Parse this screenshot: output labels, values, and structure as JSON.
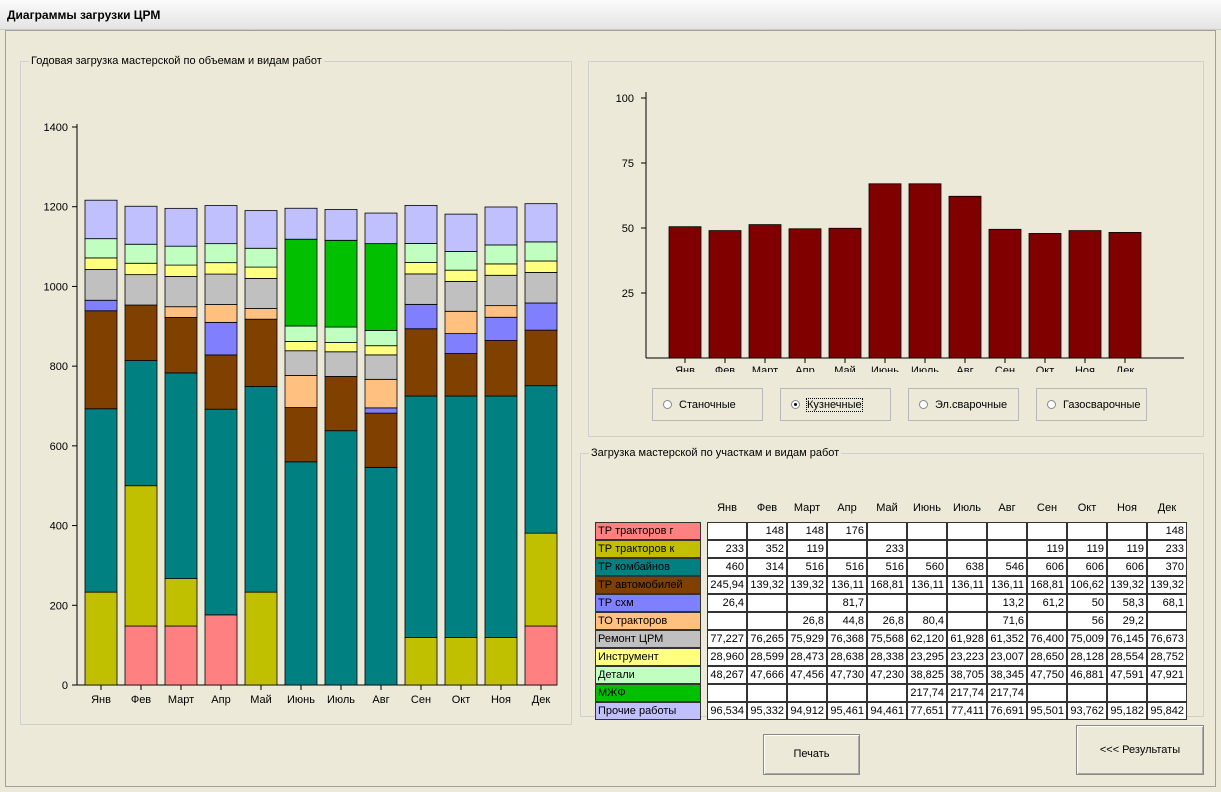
{
  "window": {
    "title": "Диаграммы загрузки ЦРМ"
  },
  "left_group": {
    "title": "Годовая загрузка мастерской по объемам и видам работ"
  },
  "table_group": {
    "title": "Загрузка мастерской по участкам и видам работ"
  },
  "months": [
    "Янв",
    "Фев",
    "Март",
    "Апр",
    "Май",
    "Июнь",
    "Июль",
    "Авг",
    "Сен",
    "Окт",
    "Ноя",
    "Дек"
  ],
  "radios": [
    {
      "label": "Станочные",
      "selected": false
    },
    {
      "label": "Кузнечные",
      "selected": true
    },
    {
      "label": "Эл.сварочные",
      "selected": false
    },
    {
      "label": "Газосварочные",
      "selected": false
    }
  ],
  "buttons": {
    "print": "Печать",
    "results": "<<< Результаты"
  },
  "categories": [
    {
      "name": "ТР тракторов г",
      "color": "#ff8080"
    },
    {
      "name": "ТР тракторов к",
      "color": "#c0c000"
    },
    {
      "name": "ТР комбайнов",
      "color": "#008080"
    },
    {
      "name": "ТР автомобилей",
      "color": "#804000"
    },
    {
      "name": "ТР схм",
      "color": "#8080ff"
    },
    {
      "name": "ТО тракторов",
      "color": "#ffc080"
    },
    {
      "name": "Ремонт ЦРМ",
      "color": "#c0c0c0"
    },
    {
      "name": "Инструмент",
      "color": "#ffff80"
    },
    {
      "name": "Детали",
      "color": "#c0ffc0"
    },
    {
      "name": "МЖФ",
      "color": "#00c000"
    },
    {
      "name": "Прочие работы",
      "color": "#c0c0ff"
    }
  ],
  "table_rows": [
    [
      "",
      "148",
      "148",
      "176",
      "",
      "",
      "",
      "",
      "",
      "",
      "",
      "148"
    ],
    [
      "233",
      "352",
      "119",
      "",
      "233",
      "",
      "",
      "",
      "119",
      "119",
      "119",
      "233"
    ],
    [
      "460",
      "314",
      "516",
      "516",
      "516",
      "560",
      "638",
      "546",
      "606",
      "606",
      "606",
      "370"
    ],
    [
      "245,94",
      "139,32",
      "139,32",
      "136,11",
      "168,81",
      "136,11",
      "136,11",
      "136,11",
      "168,81",
      "106,62",
      "139,32",
      "139,32"
    ],
    [
      "26,4",
      "",
      "",
      "81,7",
      "",
      "",
      "",
      "13,2",
      "61,2",
      "50",
      "58,3",
      "68,1"
    ],
    [
      "",
      "",
      "26,8",
      "44,8",
      "26,8",
      "80,4",
      "",
      "71,6",
      "",
      "56",
      "29,2",
      ""
    ],
    [
      "77,227",
      "76,265",
      "75,929",
      "76,368",
      "75,568",
      "62,120",
      "61,928",
      "61,352",
      "76,400",
      "75,009",
      "76,145",
      "76,673"
    ],
    [
      "28,960",
      "28,599",
      "28,473",
      "28,638",
      "28,338",
      "23,295",
      "23,223",
      "23,007",
      "28,650",
      "28,128",
      "28,554",
      "28,752"
    ],
    [
      "48,267",
      "47,666",
      "47,456",
      "47,730",
      "47,230",
      "38,825",
      "38,705",
      "38,345",
      "47,750",
      "46,881",
      "47,591",
      "47,921"
    ],
    [
      "",
      "",
      "",
      "",
      "",
      "217,74",
      "217,74",
      "217,74",
      "",
      "",
      "",
      ""
    ],
    [
      "96,534",
      "95,332",
      "94,912",
      "95,461",
      "94,461",
      "77,651",
      "77,411",
      "76,691",
      "95,501",
      "93,762",
      "95,182",
      "95,842"
    ]
  ],
  "chart_data": [
    {
      "type": "bar",
      "stacked": true,
      "categories": [
        "Янв",
        "Фев",
        "Март",
        "Апр",
        "Май",
        "Июнь",
        "Июль",
        "Авг",
        "Сен",
        "Окт",
        "Ноя",
        "Дек"
      ],
      "ylim": [
        0,
        1400
      ],
      "yticks": [
        0,
        200,
        400,
        600,
        800,
        1000,
        1200,
        1400
      ],
      "series": [
        {
          "name": "ТР тракторов г",
          "color": "#ff8080",
          "values": [
            0,
            148,
            148,
            176,
            0,
            0,
            0,
            0,
            0,
            0,
            0,
            148
          ]
        },
        {
          "name": "ТР тракторов к",
          "color": "#c0c000",
          "values": [
            233,
            352,
            119,
            0,
            233,
            0,
            0,
            0,
            119,
            119,
            119,
            233
          ]
        },
        {
          "name": "ТР комбайнов",
          "color": "#008080",
          "values": [
            460,
            314,
            516,
            516,
            516,
            560,
            638,
            546,
            606,
            606,
            606,
            370
          ]
        },
        {
          "name": "ТР автомобилей",
          "color": "#804000",
          "values": [
            245.94,
            139.32,
            139.32,
            136.11,
            168.81,
            136.11,
            136.11,
            136.11,
            168.81,
            106.62,
            139.32,
            139.32
          ]
        },
        {
          "name": "ТР схм",
          "color": "#8080ff",
          "values": [
            26.4,
            0,
            0,
            81.7,
            0,
            0,
            0,
            13.2,
            61.2,
            50,
            58.3,
            68.1
          ]
        },
        {
          "name": "ТО тракторов",
          "color": "#ffc080",
          "values": [
            0,
            0,
            26.8,
            44.8,
            26.8,
            80.4,
            0,
            71.6,
            0,
            56,
            29.2,
            0
          ]
        },
        {
          "name": "Ремонт ЦРМ",
          "color": "#c0c0c0",
          "values": [
            77.227,
            76.265,
            75.929,
            76.368,
            75.568,
            62.12,
            61.928,
            61.352,
            76.4,
            75.009,
            76.145,
            76.673
          ]
        },
        {
          "name": "Инструмент",
          "color": "#ffff80",
          "values": [
            28.96,
            28.599,
            28.473,
            28.638,
            28.338,
            23.295,
            23.223,
            23.007,
            28.65,
            28.128,
            28.554,
            28.752
          ]
        },
        {
          "name": "Детали",
          "color": "#c0ffc0",
          "values": [
            48.267,
            47.666,
            47.456,
            47.73,
            47.23,
            38.825,
            38.705,
            38.345,
            47.75,
            46.881,
            47.591,
            47.921
          ]
        },
        {
          "name": "МЖФ",
          "color": "#00c000",
          "values": [
            0,
            0,
            0,
            0,
            0,
            217.74,
            217.74,
            217.74,
            0,
            0,
            0,
            0
          ]
        },
        {
          "name": "Прочие работы",
          "color": "#c0c0ff",
          "values": [
            96.534,
            95.332,
            94.912,
            95.461,
            94.461,
            77.651,
            77.411,
            76.691,
            95.501,
            93.762,
            95.182,
            95.842
          ]
        }
      ]
    },
    {
      "type": "bar",
      "categories": [
        "Янв",
        "Фев",
        "Март",
        "Апр",
        "Май",
        "Июнь",
        "Июль",
        "Авг",
        "Сен",
        "Окт",
        "Ноя",
        "Дек"
      ],
      "values": [
        50.5,
        49,
        51.3,
        49.7,
        49.9,
        67,
        67,
        62.2,
        49.5,
        47.9,
        49,
        48.3
      ],
      "ylim": [
        0,
        100
      ],
      "yticks": [
        25,
        50,
        75,
        100
      ],
      "color": "#800000"
    }
  ]
}
